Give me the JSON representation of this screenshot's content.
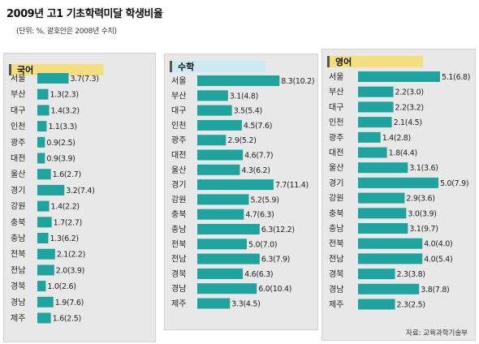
{
  "title": "2009년 고1 기초학력미달 학생비율",
  "subtitle": "(단위: %, 괄호안은 2008년 수치)",
  "source": "자료: 교육과학기술부",
  "colors": {
    "bar": "#1fa39f",
    "panel_bg": "#e8e8e8",
    "header_korean": "#f4de7e",
    "header_math": "#cde9f3",
    "header_english": "#f4de7e"
  },
  "chart_data": [
    {
      "type": "bar",
      "orientation": "horizontal",
      "title": "국어",
      "categories": [
        "서울",
        "부산",
        "대구",
        "인천",
        "광주",
        "대전",
        "울산",
        "경기",
        "강원",
        "충북",
        "충남",
        "전북",
        "전남",
        "경북",
        "경남",
        "제주"
      ],
      "values": [
        3.7,
        1.3,
        1.4,
        1.1,
        0.9,
        0.9,
        1.6,
        3.2,
        1.4,
        1.7,
        1.3,
        2.1,
        2.0,
        1.0,
        1.9,
        1.6
      ],
      "labels": [
        "3.7(7.3)",
        "1.3(2.3)",
        "1.4(3.2)",
        "1.1(3.3)",
        "0.9(2.5)",
        "0.9(3.9)",
        "1.6(2.7)",
        "3.2(7.4)",
        "1.4(2.2)",
        "1.7(2.7)",
        "1.3(6.2)",
        "2.1(2.2)",
        "2.0(3.9)",
        "1.0(2.6)",
        "1.9(7.6)",
        "1.6(2.5)"
      ]
    },
    {
      "type": "bar",
      "orientation": "horizontal",
      "title": "수학",
      "categories": [
        "서울",
        "부산",
        "대구",
        "인천",
        "광주",
        "대전",
        "울산",
        "경기",
        "강원",
        "충북",
        "충남",
        "전북",
        "전남",
        "경북",
        "경남",
        "제주"
      ],
      "values": [
        8.3,
        3.1,
        3.5,
        4.5,
        2.9,
        4.6,
        4.3,
        7.7,
        5.2,
        4.7,
        6.3,
        5.0,
        6.3,
        4.6,
        6.0,
        3.3
      ],
      "labels": [
        "8.3(10.2)",
        "3.1(4.8)",
        "3.5(5.4)",
        "4.5(7.6)",
        "2.9(5.2)",
        "4.6(7.7)",
        "4.3(6.2)",
        "7.7(11.4)",
        "5.2(5.9)",
        "4.7(6.3)",
        "6.3(12.2)",
        "5.0(7.0)",
        "6.3(7.9)",
        "4.6(6.3)",
        "6.0(10.4)",
        "3.3(4.5)"
      ]
    },
    {
      "type": "bar",
      "orientation": "horizontal",
      "title": "영어",
      "categories": [
        "서울",
        "부산",
        "대구",
        "인천",
        "광주",
        "대전",
        "울산",
        "경기",
        "강원",
        "충북",
        "충남",
        "전북",
        "전남",
        "경북",
        "경남",
        "제주"
      ],
      "values": [
        5.1,
        2.2,
        2.2,
        2.1,
        1.4,
        1.8,
        3.1,
        5.0,
        2.9,
        3.0,
        3.1,
        4.0,
        4.0,
        2.3,
        3.8,
        2.3
      ],
      "labels": [
        "5.1(6.8)",
        "2.2(3.0)",
        "2.2(3.2)",
        "2.1(4.5)",
        "1.4(2.8)",
        "1.8(4.4)",
        "3.1(3.6)",
        "5.0(7.9)",
        "2.9(3.6)",
        "3.0(3.9)",
        "3.1(9.7)",
        "4.0(4.0)",
        "4.0(5.4)",
        "2.3(3.8)",
        "3.8(7.8)",
        "2.3(2.5)"
      ]
    }
  ]
}
